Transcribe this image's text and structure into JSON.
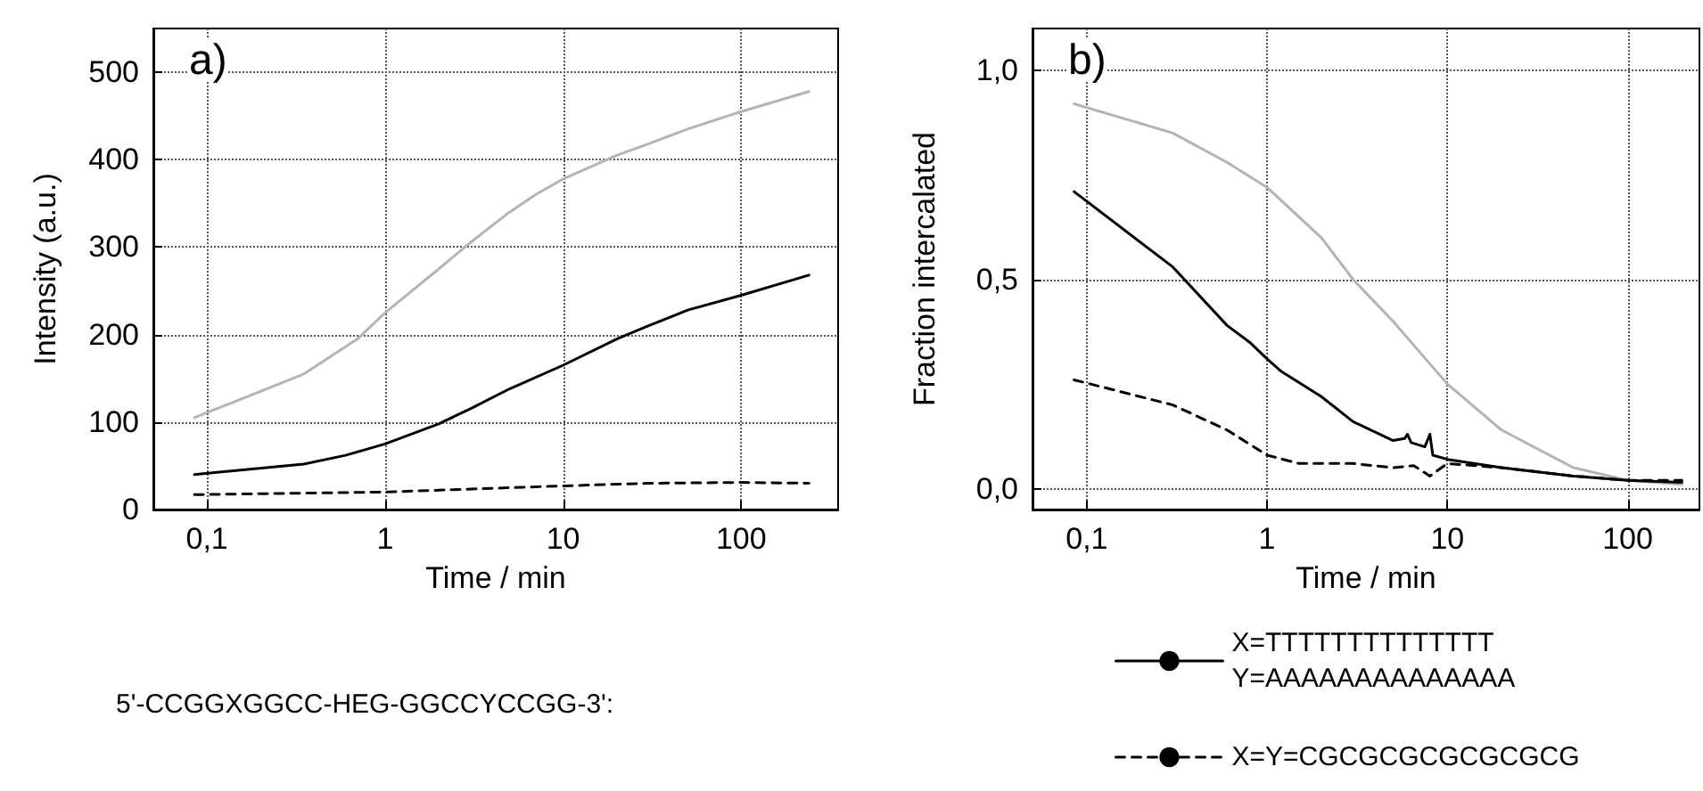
{
  "chart_data": [
    {
      "type": "line",
      "xlabel": "Time / min",
      "ylabel": "Intensity (a.u.)",
      "log": "x",
      "grid": true,
      "marker": "none",
      "xlim": [
        0.05,
        350
      ],
      "xticks": [
        {
          "value": 0.1,
          "label": "0,1"
        },
        1,
        10,
        100
      ],
      "ylim": [
        0,
        550
      ],
      "yticks": [
        0,
        100,
        200,
        300,
        400,
        500
      ],
      "annotations": [
        "a)",
        "5'-CCGGXGGCC-HEG-GGCCYCCGG-3':"
      ],
      "series": [
        {
          "color": "#b4b4b4",
          "line_style": "solid",
          "x": [
            0.085,
            0.35,
            0.7,
            1,
            2,
            3,
            5,
            7,
            10,
            20,
            30,
            50,
            100,
            240
          ],
          "values": [
            105,
            155,
            195,
            225,
            275,
            305,
            340,
            360,
            378,
            405,
            418,
            435,
            455,
            478
          ]
        },
        {
          "color": "#000000",
          "line_style": "solid",
          "x": [
            0.085,
            0.35,
            0.6,
            1,
            2,
            3,
            5,
            10,
            20,
            30,
            50,
            100,
            240
          ],
          "values": [
            40,
            52,
            62,
            75,
            98,
            115,
            138,
            165,
            195,
            210,
            228,
            245,
            268
          ]
        },
        {
          "color": "#000000",
          "line_style": "dashed",
          "x": [
            0.085,
            1,
            10,
            30,
            100,
            240
          ],
          "values": [
            17,
            20,
            27,
            30,
            31,
            30
          ]
        }
      ]
    },
    {
      "type": "line",
      "xlabel": "Time / min",
      "ylabel": "Fraction intercalated",
      "log": "x",
      "grid": true,
      "marker": "none",
      "legend": "bottom",
      "xlim": [
        0.05,
        250
      ],
      "xticks": [
        {
          "value": 0.1,
          "label": "0,1"
        },
        1,
        10,
        100
      ],
      "ylim": [
        -0.05,
        1.1
      ],
      "yticks": [
        {
          "value": 0,
          "label": "0,0"
        },
        {
          "value": 0.5,
          "label": "0,5"
        },
        {
          "value": 1,
          "label": "1,0"
        }
      ],
      "annotations": [
        "b)"
      ],
      "series": [
        {
          "color": "#b4b4b4",
          "line_style": "solid",
          "x": [
            0.085,
            0.3,
            0.6,
            1,
            2,
            3,
            5,
            10,
            20,
            50,
            100,
            200
          ],
          "values": [
            0.92,
            0.85,
            0.78,
            0.72,
            0.6,
            0.5,
            0.4,
            0.25,
            0.14,
            0.05,
            0.02,
            0.01
          ]
        },
        {
          "name": "X=TTTTTTTTTTTTTT\nY=AAAAAAAAAAAAAA",
          "color": "#000000",
          "line_style": "solid",
          "x": [
            0.085,
            0.3,
            0.6,
            0.8,
            1,
            1.2,
            2,
            3,
            5,
            5.8,
            6,
            6.3,
            7.5,
            8,
            8.3,
            10,
            20,
            50,
            100,
            200
          ],
          "values": [
            0.71,
            0.53,
            0.39,
            0.35,
            0.31,
            0.28,
            0.22,
            0.16,
            0.115,
            0.12,
            0.13,
            0.11,
            0.1,
            0.13,
            0.08,
            0.07,
            0.05,
            0.03,
            0.02,
            0.015
          ]
        },
        {
          "name": "X=Y=CGCGCGCGCGCGCG",
          "color": "#000000",
          "line_style": "dashed",
          "x": [
            0.085,
            0.3,
            0.6,
            1,
            1.5,
            3,
            5,
            6.5,
            8,
            10,
            20,
            50,
            100,
            200
          ],
          "values": [
            0.26,
            0.2,
            0.14,
            0.08,
            0.06,
            0.06,
            0.05,
            0.055,
            0.03,
            0.06,
            0.05,
            0.03,
            0.02,
            0.02
          ]
        }
      ]
    }
  ]
}
